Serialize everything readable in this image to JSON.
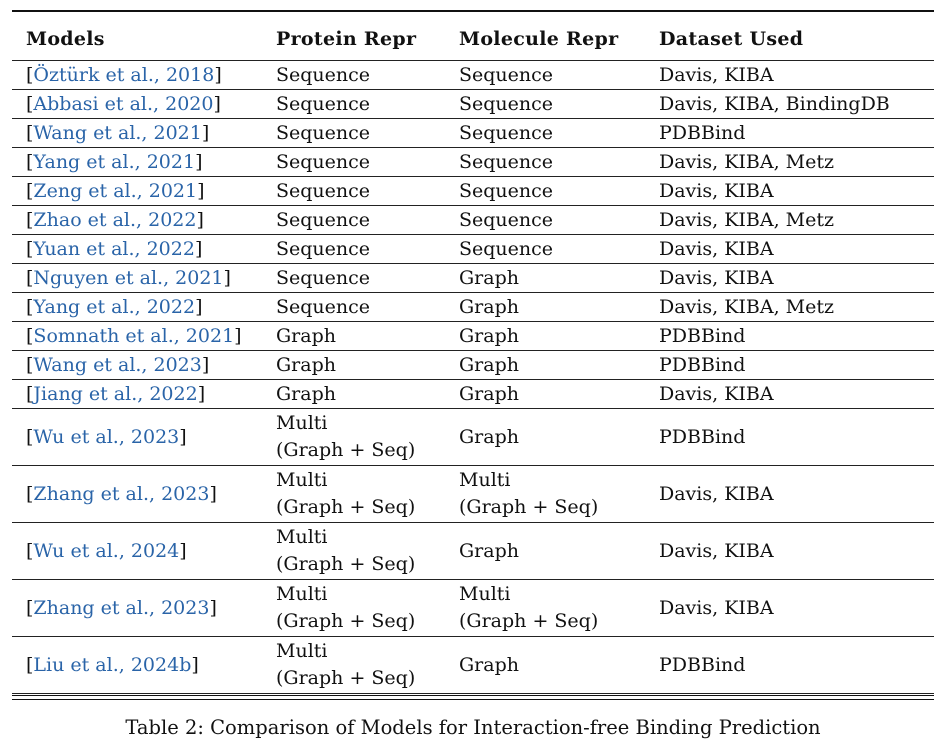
{
  "table": {
    "headers": [
      "Models",
      "Protein Repr",
      "Molecule Repr",
      "Dataset Used"
    ],
    "rows": [
      {
        "model": "Öztürk et al., 2018",
        "protein": "Sequence",
        "molecule": "Sequence",
        "dataset": "Davis, KIBA"
      },
      {
        "model": "Abbasi et al., 2020",
        "protein": "Sequence",
        "molecule": "Sequence",
        "dataset": "Davis, KIBA, BindingDB"
      },
      {
        "model": "Wang et al., 2021",
        "protein": "Sequence",
        "molecule": "Sequence",
        "dataset": "PDBBind"
      },
      {
        "model": "Yang et al., 2021",
        "protein": "Sequence",
        "molecule": "Sequence",
        "dataset": "Davis, KIBA, Metz"
      },
      {
        "model": "Zeng et al., 2021",
        "protein": "Sequence",
        "molecule": "Sequence",
        "dataset": "Davis, KIBA"
      },
      {
        "model": "Zhao et al., 2022",
        "protein": "Sequence",
        "molecule": "Sequence",
        "dataset": "Davis, KIBA, Metz"
      },
      {
        "model": "Yuan et al., 2022",
        "protein": "Sequence",
        "molecule": "Sequence",
        "dataset": "Davis, KIBA"
      },
      {
        "model": "Nguyen et al., 2021",
        "protein": "Sequence",
        "molecule": "Graph",
        "dataset": "Davis, KIBA"
      },
      {
        "model": "Yang et al., 2022",
        "protein": "Sequence",
        "molecule": "Graph",
        "dataset": "Davis, KIBA, Metz"
      },
      {
        "model": "Somnath et al., 2021",
        "protein": "Graph",
        "molecule": "Graph",
        "dataset": "PDBBind"
      },
      {
        "model": "Wang et al., 2023",
        "protein": "Graph",
        "molecule": "Graph",
        "dataset": "PDBBind"
      },
      {
        "model": "Jiang et al., 2022",
        "protein": "Graph",
        "molecule": "Graph",
        "dataset": "Davis, KIBA"
      },
      {
        "model": "Wu et al., 2023",
        "protein": "Multi\n(Graph + Seq)",
        "molecule": "Graph",
        "dataset": "PDBBind"
      },
      {
        "model": "Zhang et al., 2023",
        "protein": "Multi\n(Graph + Seq)",
        "molecule": "Multi\n(Graph + Seq)",
        "dataset": "Davis, KIBA"
      },
      {
        "model": "Wu et al., 2024",
        "protein": "Multi\n(Graph + Seq)",
        "molecule": "Graph",
        "dataset": "Davis, KIBA"
      },
      {
        "model": "Zhang et al., 2023",
        "protein": "Multi\n(Graph + Seq)",
        "molecule": "Multi\n(Graph + Seq)",
        "dataset": "Davis, KIBA"
      },
      {
        "model": "Liu et al., 2024b",
        "protein": "Multi\n(Graph + Seq)",
        "molecule": "Graph",
        "dataset": "PDBBind"
      }
    ]
  },
  "caption": "Table 2: Comparison of Models for Interaction-free Binding Prediction",
  "colors": {
    "citation": "#2a64a8",
    "text": "#111111"
  }
}
